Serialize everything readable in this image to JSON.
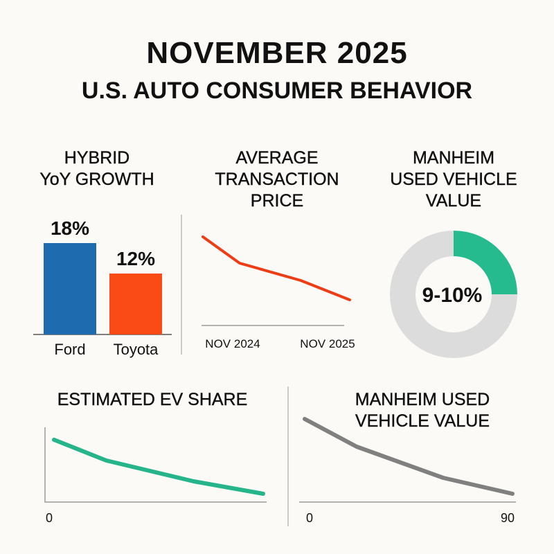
{
  "title": "NOVEMBER 2025",
  "subtitle": "U.S. AUTO CONSUMER BEHAVIOR",
  "colors": {
    "ford": "#1f6bb0",
    "toyota": "#fa4a16",
    "atp_line": "#ee3d14",
    "donut_accent": "#26bb8f",
    "donut_rest": "#dcdcdc",
    "ev_line": "#26b48a",
    "manheim_line": "#808080",
    "axis": "#9a9a9a"
  },
  "chart_data": [
    {
      "type": "bar",
      "title": "HYBRID\nYoY GROWTH",
      "title_lines": [
        "HYBRID",
        "YoY GROWTH"
      ],
      "categories": [
        "Ford",
        "Toyota"
      ],
      "values": [
        18,
        12
      ],
      "data_labels": [
        "18%",
        "12%"
      ],
      "ylim": [
        0,
        20
      ]
    },
    {
      "type": "line",
      "title_lines": [
        "AVERAGE",
        "TRANSACTION",
        "PRICE"
      ],
      "x_tick_labels": [
        "NOV 2024",
        "NOV 2025"
      ],
      "values": [
        128,
        90,
        65,
        37
      ],
      "trend": "declining"
    },
    {
      "type": "pie",
      "title_lines": [
        "MANHEIM",
        "USED VEHICLE",
        "VALUE"
      ],
      "center_label": "9-10%",
      "slices": [
        {
          "value": 25,
          "highlight": true
        },
        {
          "value": 75,
          "highlight": false
        }
      ],
      "donut": true
    },
    {
      "type": "line",
      "title_lines": [
        "ESTIMATED EV SHARE"
      ],
      "x_tick_labels": [
        "0"
      ],
      "values": [
        90,
        60,
        30,
        12
      ],
      "trend": "declining"
    },
    {
      "type": "line",
      "title_lines": [
        "MANHEIM USED",
        "VEHICLE VALUE"
      ],
      "x_tick_labels": [
        "0",
        "90"
      ],
      "values": [
        120,
        80,
        35,
        12
      ],
      "trend": "declining"
    }
  ]
}
